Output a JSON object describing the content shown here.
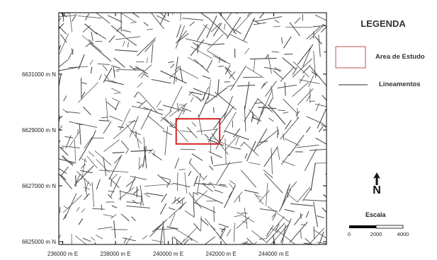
{
  "map": {
    "x_ticks": [
      {
        "value": 236000,
        "label": "236000 m E"
      },
      {
        "value": 238000,
        "label": "238000 m E"
      },
      {
        "value": 240000,
        "label": "240000 m E"
      },
      {
        "value": 242000,
        "label": "242000 m E"
      },
      {
        "value": 244000,
        "label": "244000 m E"
      }
    ],
    "y_ticks": [
      {
        "value": 6631000,
        "label": "6631000 m N"
      },
      {
        "value": 6629000,
        "label": "6629000 m N"
      },
      {
        "value": 6627000,
        "label": "6627000 m N"
      },
      {
        "value": 6625000,
        "label": "6625000 m N"
      }
    ],
    "extent": {
      "xmin": 235850,
      "xmax": 246000,
      "ymin": 6624900,
      "ymax": 6633200
    },
    "study_area": {
      "xmin": 240300,
      "xmax": 241950,
      "ymin": 6628500,
      "ymax": 6629400
    },
    "lineament_color": "#4d4d4d",
    "study_area_color": "#d42222"
  },
  "legend": {
    "title": "LEGENDA",
    "study_area_label": "Area de Estudo",
    "study_area_swatch_color": "#c0504d",
    "lineaments_label": "Lineamentos"
  },
  "north_arrow": {
    "letter": "N",
    "icon": "north-arrow-icon"
  },
  "scale": {
    "title": "Escala",
    "labels": [
      "0",
      "2000",
      "4000"
    ]
  }
}
